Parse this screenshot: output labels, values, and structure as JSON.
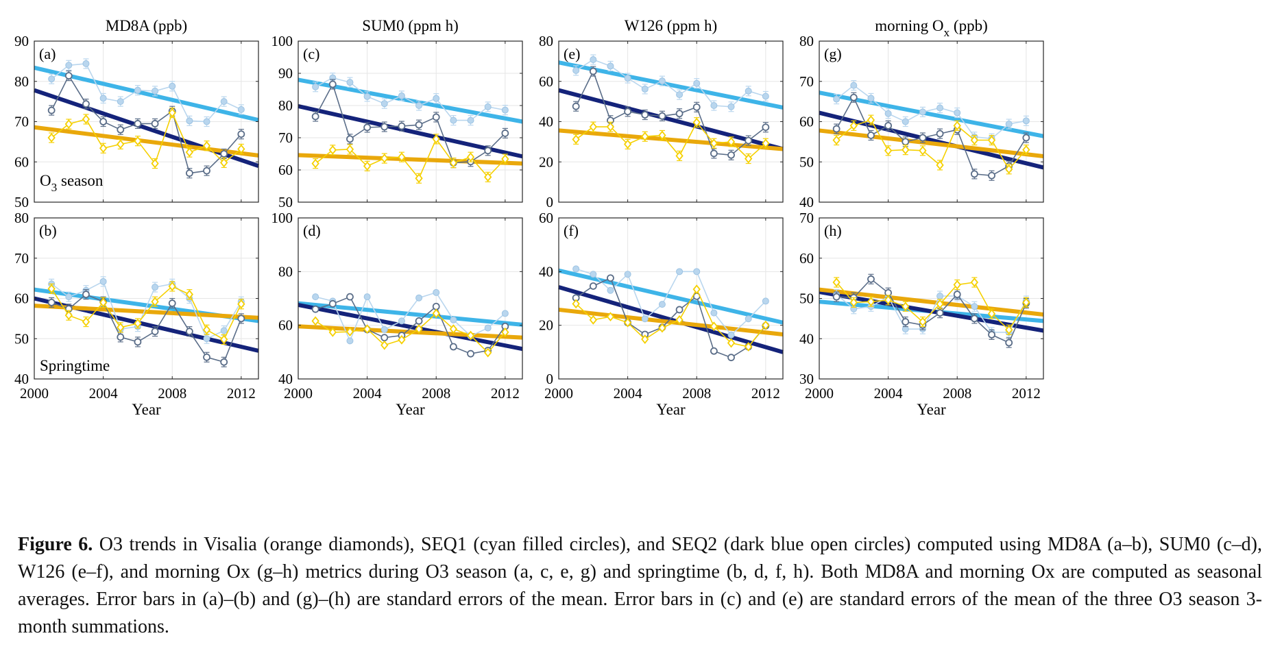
{
  "figure": {
    "series_colors": {
      "Visalia_points": "#f5d000",
      "Visalia_trend": "#e9a80b",
      "SEQ1_points": "#b9d6ee",
      "SEQ1_trend": "#3eb4e8",
      "SEQ2_points": "#5a6d88",
      "SEQ2_trend": "#14237a"
    },
    "xlabel": "Year",
    "row_labels": [
      "O3 season",
      "Springtime"
    ]
  },
  "caption": {
    "label": "Figure 6.",
    "body": "O3 trends in Visalia (orange diamonds), SEQ1 (cyan filled circles), and SEQ2 (dark blue open circles) computed using MD8A (a–b), SUM0 (c–d), W126 (e–f), and morning Ox (g–h) metrics during O3 season (a, c, e, g) and springtime (b, d, f, h). Both MD8A and morning Ox are computed as seasonal averages. Error bars in (a)–(b) and (g)–(h) are standard errors of the mean. Error bars in (c) and (e) are standard errors of the mean of the three O3 season 3-month summations."
  },
  "chart_data": [
    {
      "type": "line",
      "panel": "(a)",
      "column_title": "MD8A (ppb)",
      "row_label": "O3 season",
      "xlim": [
        2000,
        2013
      ],
      "xticks": [
        2000,
        2004,
        2008,
        2012
      ],
      "ylim": [
        50,
        90
      ],
      "yticks": [
        50,
        60,
        70,
        80,
        90
      ],
      "grid": true,
      "x": [
        2001,
        2002,
        2003,
        2004,
        2005,
        2006,
        2007,
        2008,
        2009,
        2010,
        2011,
        2012
      ],
      "series": [
        {
          "name": "SEQ1",
          "values": [
            80.6,
            84.0,
            84.4,
            75.8,
            75.0,
            77.8,
            77.6,
            78.8,
            70.2,
            70.0,
            75.0,
            73.0
          ],
          "trend": [
            83.4,
            70.4
          ]
        },
        {
          "name": "SEQ2",
          "values": [
            72.8,
            81.4,
            74.4,
            70.0,
            68.0,
            69.5,
            69.5,
            72.6,
            57.2,
            57.8,
            62.0,
            66.9
          ],
          "trend": [
            77.8,
            59.0
          ]
        },
        {
          "name": "Visalia",
          "values": [
            66.0,
            69.4,
            70.6,
            63.4,
            64.4,
            65.2,
            59.6,
            72.2,
            62.4,
            64.0,
            59.8,
            63.2
          ],
          "trend": [
            68.6,
            61.6
          ]
        }
      ]
    },
    {
      "type": "line",
      "panel": "(b)",
      "row_label": "Springtime",
      "xlim": [
        2000,
        2013
      ],
      "xticks": [
        2000,
        2004,
        2008,
        2012
      ],
      "ylim": [
        40,
        80
      ],
      "yticks": [
        40,
        50,
        60,
        70,
        80
      ],
      "grid": true,
      "x": [
        2001,
        2002,
        2003,
        2004,
        2005,
        2006,
        2007,
        2008,
        2009,
        2010,
        2011,
        2012
      ],
      "series": [
        {
          "name": "SEQ1",
          "values": [
            63.6,
            60.4,
            62.0,
            64.2,
            52.4,
            53.0,
            62.8,
            63.6,
            60.0,
            50.0,
            52.0,
            59.2
          ],
          "trend": [
            62.2,
            54.4
          ]
        },
        {
          "name": "SEQ2",
          "values": [
            59.0,
            57.4,
            61.0,
            59.2,
            50.4,
            49.2,
            51.8,
            58.8,
            51.8,
            45.4,
            44.2,
            55.0
          ],
          "trend": [
            60.0,
            47.0
          ]
        },
        {
          "name": "Visalia",
          "values": [
            62.4,
            55.8,
            54.2,
            59.0,
            52.8,
            53.8,
            59.2,
            63.0,
            61.0,
            52.2,
            49.8,
            58.6
          ],
          "trend": [
            58.2,
            55.2
          ]
        }
      ]
    },
    {
      "type": "line",
      "panel": "(c)",
      "column_title": "SUM0 (ppm h)",
      "xlim": [
        2000,
        2013
      ],
      "xticks": [
        2000,
        2004,
        2008,
        2012
      ],
      "ylim": [
        50,
        100
      ],
      "yticks": [
        50,
        60,
        70,
        80,
        90,
        100
      ],
      "grid": true,
      "x": [
        2001,
        2002,
        2003,
        2004,
        2005,
        2006,
        2007,
        2008,
        2009,
        2010,
        2011,
        2012
      ],
      "series": [
        {
          "name": "SEQ1",
          "values": [
            85.8,
            88.6,
            87.2,
            82.8,
            80.6,
            83.0,
            80.0,
            82.2,
            75.4,
            75.4,
            79.6,
            78.6
          ],
          "trend": [
            88.0,
            75.0
          ]
        },
        {
          "name": "SEQ2",
          "values": [
            76.6,
            86.6,
            69.6,
            73.2,
            73.4,
            73.6,
            74.0,
            76.4,
            62.2,
            62.6,
            66.0,
            71.4
          ],
          "trend": [
            79.8,
            64.2
          ]
        },
        {
          "name": "Visalia",
          "values": [
            62.0,
            66.2,
            66.4,
            61.2,
            63.6,
            64.0,
            57.4,
            69.6,
            62.2,
            64.0,
            57.8,
            63.4
          ],
          "trend": [
            64.6,
            62.0
          ]
        }
      ]
    },
    {
      "type": "line",
      "panel": "(d)",
      "xlim": [
        2000,
        2013
      ],
      "xticks": [
        2000,
        2004,
        2008,
        2012
      ],
      "ylim": [
        40,
        100
      ],
      "yticks": [
        40,
        60,
        80,
        100
      ],
      "grid": true,
      "x": [
        2001,
        2002,
        2003,
        2004,
        2005,
        2006,
        2007,
        2008,
        2009,
        2010,
        2011,
        2012
      ],
      "series": [
        {
          "name": "SEQ1",
          "values": [
            70.6,
            69.0,
            54.2,
            70.6,
            58.4,
            61.6,
            70.2,
            72.2,
            62.0,
            56.0,
            59.0,
            64.4
          ],
          "trend": [
            68.2,
            60.2
          ]
        },
        {
          "name": "SEQ2",
          "values": [
            66.0,
            68.0,
            70.6,
            58.4,
            55.4,
            56.2,
            61.6,
            67.0,
            52.0,
            49.4,
            50.6,
            59.6
          ],
          "trend": [
            67.6,
            51.2
          ]
        },
        {
          "name": "Visalia",
          "values": [
            61.6,
            57.4,
            57.6,
            58.6,
            52.6,
            54.6,
            58.6,
            64.4,
            58.6,
            56.2,
            49.8,
            57.4
          ],
          "trend": [
            59.6,
            55.4
          ]
        }
      ]
    },
    {
      "type": "line",
      "panel": "(e)",
      "column_title": "W126 (ppm h)",
      "xlim": [
        2000,
        2013
      ],
      "xticks": [
        2000,
        2004,
        2008,
        2012
      ],
      "ylim": [
        0,
        80
      ],
      "yticks": [
        0,
        20,
        40,
        60,
        80
      ],
      "grid": true,
      "x": [
        2001,
        2002,
        2003,
        2004,
        2005,
        2006,
        2007,
        2008,
        2009,
        2010,
        2011,
        2012
      ],
      "series": [
        {
          "name": "SEQ1",
          "values": [
            65.4,
            70.8,
            67.6,
            61.6,
            56.2,
            60.2,
            53.4,
            59.0,
            48.0,
            47.4,
            55.2,
            52.6
          ],
          "trend": [
            69.4,
            47.0
          ]
        },
        {
          "name": "SEQ2",
          "values": [
            47.6,
            65.0,
            40.6,
            45.0,
            43.4,
            42.8,
            44.0,
            47.2,
            24.2,
            23.4,
            30.6,
            37.2
          ],
          "trend": [
            55.6,
            26.4
          ]
        },
        {
          "name": "Visalia",
          "values": [
            31.2,
            37.4,
            37.4,
            28.8,
            32.6,
            33.2,
            23.0,
            39.6,
            29.2,
            30.0,
            21.6,
            29.2
          ],
          "trend": [
            35.6,
            26.4
          ]
        }
      ]
    },
    {
      "type": "line",
      "panel": "(f)",
      "xlim": [
        2000,
        2013
      ],
      "xticks": [
        2000,
        2004,
        2008,
        2012
      ],
      "ylim": [
        0,
        60
      ],
      "yticks": [
        0,
        20,
        40,
        60
      ],
      "grid": true,
      "x": [
        2001,
        2002,
        2003,
        2004,
        2005,
        2006,
        2007,
        2008,
        2009,
        2010,
        2011,
        2012
      ],
      "series": [
        {
          "name": "SEQ1",
          "values": [
            41.0,
            39.0,
            33.0,
            39.0,
            22.4,
            27.8,
            40.0,
            40.0,
            24.6,
            16.4,
            22.4,
            29.0
          ],
          "trend": [
            40.4,
            21.0
          ]
        },
        {
          "name": "SEQ2",
          "values": [
            30.2,
            34.6,
            37.6,
            21.0,
            16.6,
            19.2,
            25.8,
            30.8,
            10.4,
            8.0,
            12.0,
            19.8
          ],
          "trend": [
            34.2,
            10.0
          ]
        },
        {
          "name": "Visalia",
          "values": [
            28.0,
            22.0,
            23.2,
            21.0,
            14.8,
            19.0,
            22.0,
            33.4,
            19.6,
            13.4,
            12.0,
            20.0
          ],
          "trend": [
            25.8,
            16.6
          ]
        }
      ]
    },
    {
      "type": "line",
      "panel": "(g)",
      "column_title": "morning O x (ppb)",
      "xlim": [
        2000,
        2013
      ],
      "xticks": [
        2000,
        2004,
        2008,
        2012
      ],
      "ylim": [
        40,
        80
      ],
      "yticks": [
        40,
        50,
        60,
        70,
        80
      ],
      "grid": true,
      "x": [
        2001,
        2002,
        2003,
        2004,
        2005,
        2006,
        2007,
        2008,
        2009,
        2010,
        2011,
        2012
      ],
      "series": [
        {
          "name": "SEQ1",
          "values": [
            65.6,
            69.0,
            65.8,
            62.0,
            60.0,
            62.4,
            63.4,
            62.2,
            56.2,
            55.8,
            59.4,
            60.2
          ],
          "trend": [
            67.2,
            56.4
          ]
        },
        {
          "name": "SEQ2",
          "values": [
            58.2,
            66.0,
            56.6,
            59.0,
            55.0,
            56.0,
            57.0,
            58.0,
            47.0,
            46.6,
            49.0,
            56.0
          ],
          "trend": [
            62.2,
            48.6
          ]
        },
        {
          "name": "Visalia",
          "values": [
            55.4,
            59.0,
            60.4,
            52.8,
            53.0,
            52.8,
            49.2,
            59.0,
            55.4,
            55.4,
            48.2,
            53.0
          ],
          "trend": [
            57.8,
            51.4
          ]
        }
      ]
    },
    {
      "type": "line",
      "panel": "(h)",
      "xlim": [
        2000,
        2013
      ],
      "xticks": [
        2000,
        2004,
        2008,
        2012
      ],
      "ylim": [
        30,
        70
      ],
      "yticks": [
        30,
        40,
        50,
        60,
        70
      ],
      "grid": true,
      "x": [
        2001,
        2002,
        2003,
        2004,
        2005,
        2006,
        2007,
        2008,
        2009,
        2010,
        2011,
        2012
      ],
      "series": [
        {
          "name": "SEQ1",
          "values": [
            51.0,
            47.4,
            48.0,
            50.4,
            42.4,
            42.4,
            50.6,
            50.6,
            48.0,
            41.6,
            41.6,
            49.4
          ],
          "trend": [
            49.2,
            44.4
          ]
        },
        {
          "name": "SEQ2",
          "values": [
            50.4,
            50.2,
            54.8,
            51.4,
            44.2,
            43.4,
            46.4,
            51.0,
            45.0,
            41.0,
            39.0,
            48.8
          ],
          "trend": [
            51.6,
            42.0
          ]
        },
        {
          "name": "Visalia",
          "values": [
            54.0,
            49.0,
            49.2,
            49.6,
            48.0,
            44.2,
            48.6,
            53.4,
            54.0,
            46.2,
            42.2,
            49.0
          ],
          "trend": [
            52.2,
            46.0
          ]
        }
      ]
    }
  ]
}
